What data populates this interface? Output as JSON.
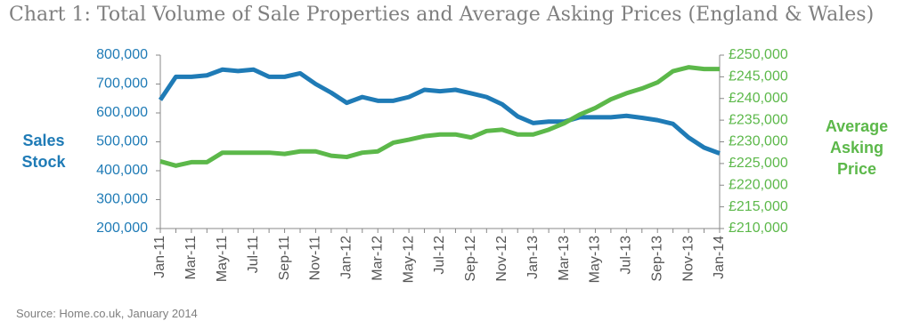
{
  "chart_data": {
    "type": "line",
    "title": "Chart 1: Total Volume of Sale Properties and Average Asking Prices (England & Wales)",
    "y_label": "Sales Stock",
    "y2_label": "Average Asking Price",
    "source": "Source: Home.co.uk, January 2014",
    "categories": [
      "Jan-11",
      null,
      "Mar-11",
      null,
      "May-11",
      null,
      "Jul-11",
      null,
      "Sep-11",
      null,
      "Nov-11",
      null,
      "Jan-12",
      null,
      "Mar-12",
      null,
      "May-12",
      null,
      "Jul-12",
      null,
      "Sep-12",
      null,
      "Nov-12",
      null,
      "Jan-13",
      null,
      "Mar-13",
      null,
      "May-13",
      null,
      "Jul-13",
      null,
      "Sep-13",
      null,
      "Nov-13",
      null,
      "Jan-14"
    ],
    "series": [
      {
        "name": "Sales Stock",
        "color": "#1f7bb6",
        "values": [
          645000,
          725000,
          725000,
          730000,
          750000,
          745000,
          750000,
          725000,
          725000,
          737000,
          700000,
          670000,
          635000,
          655000,
          642000,
          642000,
          655000,
          680000,
          675000,
          680000,
          668000,
          655000,
          630000,
          588000,
          565000,
          570000,
          570000,
          585000,
          585000,
          585000,
          590000,
          583000,
          575000,
          562000,
          515000,
          480000,
          460000
        ]
      },
      {
        "name": "Average Asking Price",
        "color": "#5cb84a",
        "axis": "y2",
        "values": [
          225500,
          224500,
          225300,
          225300,
          227500,
          227500,
          227500,
          227500,
          227200,
          227800,
          227800,
          226800,
          226500,
          227500,
          227800,
          229800,
          230500,
          231300,
          231700,
          231700,
          231000,
          232500,
          232800,
          231700,
          231700,
          232800,
          234300,
          236300,
          237800,
          239800,
          241200,
          242300,
          243700,
          246300,
          247200,
          246800,
          246800
        ]
      }
    ],
    "ylim": [
      200000,
      800000
    ],
    "yticks": [
      {
        "value": 200000,
        "label": "200,000"
      },
      {
        "value": 300000,
        "label": "300,000"
      },
      {
        "value": 400000,
        "label": "400,000"
      },
      {
        "value": 500000,
        "label": "500,000"
      },
      {
        "value": 600000,
        "label": "600,000"
      },
      {
        "value": 700000,
        "label": "700,000"
      },
      {
        "value": 800000,
        "label": "800,000"
      }
    ],
    "y2lim": [
      210000,
      250000
    ],
    "y2ticks": [
      {
        "value": 210000,
        "label": "£210,000"
      },
      {
        "value": 215000,
        "label": "£215,000"
      },
      {
        "value": 220000,
        "label": "£220,000"
      },
      {
        "value": 225000,
        "label": "£225,000"
      },
      {
        "value": 230000,
        "label": "£230,000"
      },
      {
        "value": 235000,
        "label": "£235,000"
      },
      {
        "value": 240000,
        "label": "£240,000"
      },
      {
        "value": 245000,
        "label": "£245,000"
      },
      {
        "value": 250000,
        "label": "£250,000"
      }
    ],
    "grid": false
  }
}
